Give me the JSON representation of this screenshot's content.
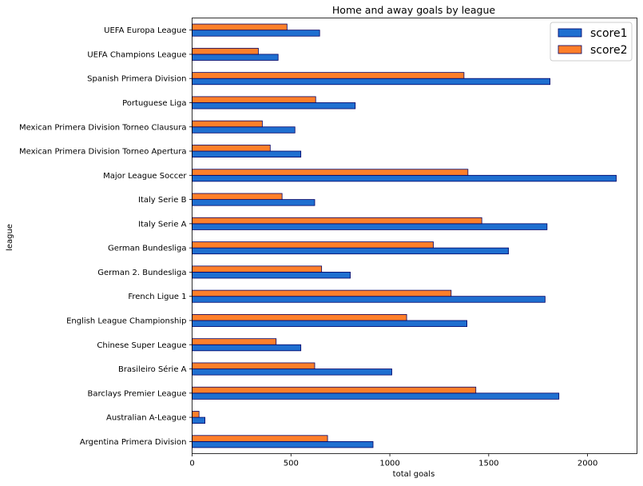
{
  "chart_data": {
    "type": "bar",
    "orientation": "horizontal",
    "title": "Home and away goals by league",
    "xlabel": "total goals",
    "ylabel": "league",
    "xlim": [
      0,
      2250
    ],
    "xticks": [
      0,
      500,
      1000,
      1500,
      2000
    ],
    "grid": false,
    "legend_position": "top-right",
    "categories": [
      "Argentina Primera Division",
      "Australian A-League",
      "Barclays Premier League",
      "Brasileiro Série A",
      "Chinese Super League",
      "English League Championship",
      "French Ligue 1",
      "German 2. Bundesliga",
      "German Bundesliga",
      "Italy Serie A",
      "Italy Serie B",
      "Major League Soccer",
      "Mexican Primera Division Torneo Apertura",
      "Mexican Primera Division Torneo Clausura",
      "Portuguese Liga",
      "Spanish Primera Division",
      "UEFA Champions League",
      "UEFA Europa League"
    ],
    "series": [
      {
        "name": "score1",
        "color": "#1f6fd0",
        "values": [
          915,
          65,
          1855,
          1010,
          550,
          1390,
          1785,
          800,
          1600,
          1795,
          620,
          2145,
          550,
          520,
          825,
          1810,
          435,
          645
        ]
      },
      {
        "name": "score2",
        "color": "#ff7f2a",
        "values": [
          685,
          35,
          1435,
          620,
          425,
          1085,
          1310,
          655,
          1220,
          1465,
          455,
          1395,
          395,
          355,
          625,
          1375,
          335,
          480
        ]
      }
    ]
  }
}
